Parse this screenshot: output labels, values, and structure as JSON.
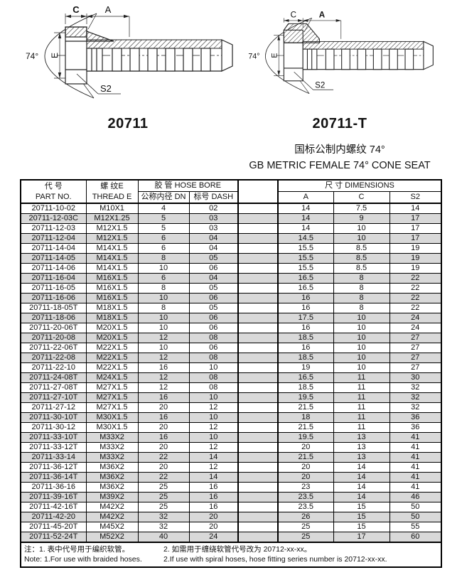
{
  "figures": [
    {
      "part_number": "20711",
      "labels": {
        "c": "C",
        "a": "A",
        "e": "E",
        "s2": "S2",
        "angle": "74°"
      }
    },
    {
      "part_number": "20711-T",
      "labels": {
        "c": "C",
        "a": "A",
        "e": "E",
        "s2": "S2",
        "angle": "74°"
      }
    }
  ],
  "title": {
    "zh": "国标公制内螺纹 74°",
    "en": "GB METRIC FEMALE 74° CONE SEAT"
  },
  "table": {
    "header": {
      "part_no_zh": "代 号",
      "part_no_en": "PART NO.",
      "thread_zh": "螺 纹E",
      "thread_en": "THREAD E",
      "hose_bore_group": "胶 管 HOSE BORE",
      "dn": "公称内径 DN",
      "dash": "标号 DASH",
      "dimensions_group": "尺 寸 DIMENSIONS",
      "dim_a": "A",
      "dim_c": "C",
      "dim_s2": "S2"
    },
    "rows": [
      [
        "20711-10-02",
        "M10X1",
        "4",
        "02",
        "14",
        "7.5",
        "14"
      ],
      [
        "20711-12-03C",
        "M12X1.25",
        "5",
        "03",
        "14",
        "9",
        "17"
      ],
      [
        "20711-12-03",
        "M12X1.5",
        "5",
        "03",
        "14",
        "10",
        "17"
      ],
      [
        "20711-12-04",
        "M12X1.5",
        "6",
        "04",
        "14.5",
        "10",
        "17"
      ],
      [
        "20711-14-04",
        "M14X1.5",
        "6",
        "04",
        "15.5",
        "8.5",
        "19"
      ],
      [
        "20711-14-05",
        "M14X1.5",
        "8",
        "05",
        "15.5",
        "8.5",
        "19"
      ],
      [
        "20711-14-06",
        "M14X1.5",
        "10",
        "06",
        "15.5",
        "8.5",
        "19"
      ],
      [
        "20711-16-04",
        "M16X1.5",
        "6",
        "04",
        "16.5",
        "8",
        "22"
      ],
      [
        "20711-16-05",
        "M16X1.5",
        "8",
        "05",
        "16.5",
        "8",
        "22"
      ],
      [
        "20711-16-06",
        "M16X1.5",
        "10",
        "06",
        "16",
        "8",
        "22"
      ],
      [
        "20711-18-05T",
        "M18X1.5",
        "8",
        "05",
        "16",
        "8",
        "22"
      ],
      [
        "20711-18-06",
        "M18X1.5",
        "10",
        "06",
        "17.5",
        "10",
        "24"
      ],
      [
        "20711-20-06T",
        "M20X1.5",
        "10",
        "06",
        "16",
        "10",
        "24"
      ],
      [
        "20711-20-08",
        "M20X1.5",
        "12",
        "08",
        "18.5",
        "10",
        "27"
      ],
      [
        "20711-22-06T",
        "M22X1.5",
        "10",
        "06",
        "16",
        "10",
        "27"
      ],
      [
        "20711-22-08",
        "M22X1.5",
        "12",
        "08",
        "18.5",
        "10",
        "27"
      ],
      [
        "20711-22-10",
        "M22X1.5",
        "16",
        "10",
        "19",
        "10",
        "27"
      ],
      [
        "20711-24-08T",
        "M24X1.5",
        "12",
        "08",
        "16.5",
        "11",
        "30"
      ],
      [
        "20711-27-08T",
        "M27X1.5",
        "12",
        "08",
        "18.5",
        "11",
        "32"
      ],
      [
        "20711-27-10T",
        "M27X1.5",
        "16",
        "10",
        "19.5",
        "11",
        "32"
      ],
      [
        "20711-27-12",
        "M27X1.5",
        "20",
        "12",
        "21.5",
        "11",
        "32"
      ],
      [
        "20711-30-10T",
        "M30X1.5",
        "16",
        "10",
        "18",
        "11",
        "36"
      ],
      [
        "20711-30-12",
        "M30X1.5",
        "20",
        "12",
        "21.5",
        "11",
        "36"
      ],
      [
        "20711-33-10T",
        "M33X2",
        "16",
        "10",
        "19.5",
        "13",
        "41"
      ],
      [
        "20711-33-12T",
        "M33X2",
        "20",
        "12",
        "20",
        "13",
        "41"
      ],
      [
        "20711-33-14",
        "M33X2",
        "22",
        "14",
        "21.5",
        "13",
        "41"
      ],
      [
        "20711-36-12T",
        "M36X2",
        "20",
        "12",
        "20",
        "14",
        "41"
      ],
      [
        "20711-36-14T",
        "M36X2",
        "22",
        "14",
        "20",
        "14",
        "41"
      ],
      [
        "20711-36-16",
        "M36X2",
        "25",
        "16",
        "23",
        "14",
        "41"
      ],
      [
        "20711-39-16T",
        "M39X2",
        "25",
        "16",
        "23.5",
        "14",
        "46"
      ],
      [
        "20711-42-16T",
        "M42X2",
        "25",
        "16",
        "23.5",
        "15",
        "50"
      ],
      [
        "20711-42-20",
        "M42X2",
        "32",
        "20",
        "26",
        "15",
        "50"
      ],
      [
        "20711-45-20T",
        "M45X2",
        "32",
        "20",
        "25",
        "15",
        "55"
      ],
      [
        "20711-52-24T",
        "M52X2",
        "40",
        "24",
        "25",
        "17",
        "60"
      ]
    ]
  },
  "notes": {
    "zh_1": "注：1. 表中代号用于编织软管。",
    "zh_2": "2. 如需用于缠绕软管代号改为 20712-xx-xx。",
    "en_1": "Note: 1.For use with braided hoses.",
    "en_2": "2.If use with spiral hoses, hose fitting series number is 20712-xx-xx."
  },
  "colors": {
    "alt_row": "#d9d9d9",
    "border": "#000000",
    "line": "#222222"
  }
}
